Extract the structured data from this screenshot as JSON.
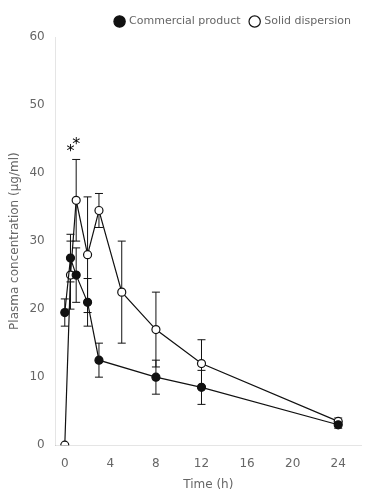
{
  "chart_data": {
    "type": "line",
    "xlabel": "Time (h)",
    "ylabel": "Plasma concentration (μg/ml)",
    "xlim": [
      -0.8,
      26
    ],
    "ylim": [
      0,
      60
    ],
    "xticks": [
      0,
      4,
      8,
      12,
      16,
      20,
      24
    ],
    "yticks": [
      0,
      10,
      20,
      30,
      40,
      50,
      60
    ],
    "grid": false,
    "legend": "upper right",
    "series": [
      {
        "name": "Commercial product",
        "color": "#111111",
        "marker": "circle",
        "x": [
          0,
          0.5,
          1,
          2,
          3,
          8,
          12,
          24
        ],
        "values": [
          19.5,
          27.5,
          25.0,
          21.0,
          12.5,
          10.0,
          8.5,
          3.0
        ],
        "errors": [
          2.0,
          3.5,
          4.0,
          3.5,
          2.5,
          2.5,
          2.5,
          0.5
        ]
      },
      {
        "name": "Solid dispersion",
        "color": "#111111",
        "marker": "open circle",
        "x": [
          0,
          0.5,
          1,
          2,
          3,
          5,
          8,
          12,
          24
        ],
        "values": [
          0.0,
          25.0,
          36.0,
          28.0,
          34.5,
          22.5,
          17.0,
          12.0,
          3.5
        ],
        "errors": [
          0.0,
          5.0,
          6.0,
          8.5,
          2.5,
          7.5,
          5.5,
          3.5,
          0.5
        ]
      }
    ],
    "annotations": [
      {
        "text": "*",
        "x": 0.5,
        "y": 42
      },
      {
        "text": "*",
        "x": 1,
        "y": 43
      }
    ]
  }
}
